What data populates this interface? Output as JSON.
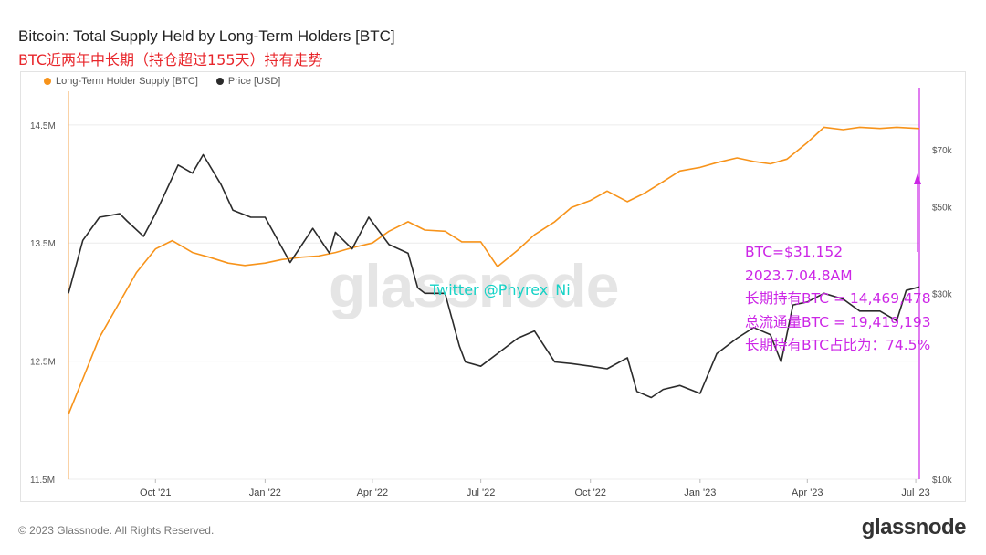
{
  "title": "Bitcoin: Total Supply Held by Long-Term Holders [BTC]",
  "subtitle": "BTC近两年中长期（持仓超过155天）持有走势",
  "footer": "© 2023 Glassnode. All Rights Reserved.",
  "brand": "glassnode",
  "watermark": "glassnode",
  "twitter_handle": "Twitter @Phyrex_Ni",
  "annotations": [
    "BTC=$31,152",
    "2023.7.04.8AM",
    "长期持有BTC = 14,469,478",
    "总流通量BTC = 19,419,193",
    "长期持有BTC占比为：74.5%"
  ],
  "colors": {
    "lth": "#f7931a",
    "price": "#2b2b2b",
    "annotation": "#cc26e6",
    "title_cn": "#e8262b",
    "twitter": "#15d2c6"
  },
  "chart_data": {
    "type": "line",
    "title": "Bitcoin: Total Supply Held by Long-Term Holders [BTC]",
    "legend_position": "top-left",
    "grid": true,
    "x_ticks": [
      "Oct '21",
      "Jan '22",
      "Apr '22",
      "Jul '22",
      "Oct '22",
      "Jan '23",
      "Apr '23",
      "Jul '23"
    ],
    "y_left": {
      "label": "Long-Term Holder Supply [BTC]",
      "ticks": [
        "11.5M",
        "12.5M",
        "13.5M",
        "14.5M"
      ],
      "range": [
        11500000,
        14800000
      ]
    },
    "y_right": {
      "label": "Price [USD]",
      "scale": "log",
      "ticks": [
        "$10k",
        "$30k",
        "$50k",
        "$70k"
      ],
      "range": [
        10000,
        100000
      ]
    },
    "x_range": [
      "2021-07-20",
      "2023-07-04"
    ],
    "series": [
      {
        "name": "Long-Term Holder Supply [BTC]",
        "axis": "left",
        "x": [
          "2021-07-20",
          "2021-08-01",
          "2021-08-15",
          "2021-09-01",
          "2021-09-15",
          "2021-10-01",
          "2021-10-15",
          "2021-11-01",
          "2021-11-15",
          "2021-12-01",
          "2021-12-15",
          "2022-01-01",
          "2022-01-15",
          "2022-02-01",
          "2022-02-15",
          "2022-03-01",
          "2022-03-15",
          "2022-04-01",
          "2022-04-15",
          "2022-05-01",
          "2022-05-15",
          "2022-06-01",
          "2022-06-15",
          "2022-07-01",
          "2022-07-15",
          "2022-08-01",
          "2022-08-15",
          "2022-09-01",
          "2022-09-15",
          "2022-10-01",
          "2022-10-15",
          "2022-11-01",
          "2022-11-15",
          "2022-12-01",
          "2022-12-15",
          "2023-01-01",
          "2023-01-15",
          "2023-02-01",
          "2023-02-15",
          "2023-03-01",
          "2023-03-15",
          "2023-04-01",
          "2023-04-15",
          "2023-05-01",
          "2023-05-15",
          "2023-06-01",
          "2023-06-15",
          "2023-07-04"
        ],
        "values": [
          12050000,
          12350000,
          12700000,
          13000000,
          13250000,
          13450000,
          13520000,
          13420000,
          13380000,
          13330000,
          13310000,
          13330000,
          13360000,
          13380000,
          13390000,
          13420000,
          13460000,
          13500000,
          13600000,
          13680000,
          13610000,
          13600000,
          13510000,
          13510000,
          13300000,
          13440000,
          13570000,
          13680000,
          13800000,
          13860000,
          13940000,
          13850000,
          13920000,
          14020000,
          14110000,
          14140000,
          14180000,
          14220000,
          14190000,
          14170000,
          14210000,
          14350000,
          14480000,
          14460000,
          14480000,
          14470000,
          14480000,
          14469478
        ]
      },
      {
        "name": "Price [USD]",
        "axis": "right",
        "x": [
          "2021-07-20",
          "2021-08-01",
          "2021-08-15",
          "2021-09-01",
          "2021-09-07",
          "2021-09-21",
          "2021-10-01",
          "2021-10-20",
          "2021-11-01",
          "2021-11-10",
          "2021-11-25",
          "2021-12-05",
          "2021-12-20",
          "2022-01-01",
          "2022-01-22",
          "2022-02-10",
          "2022-02-24",
          "2022-03-01",
          "2022-03-15",
          "2022-03-29",
          "2022-04-15",
          "2022-05-01",
          "2022-05-09",
          "2022-05-15",
          "2022-06-01",
          "2022-06-13",
          "2022-06-18",
          "2022-07-01",
          "2022-07-15",
          "2022-08-01",
          "2022-08-15",
          "2022-09-01",
          "2022-09-15",
          "2022-10-01",
          "2022-10-15",
          "2022-11-01",
          "2022-11-09",
          "2022-11-21",
          "2022-12-01",
          "2022-12-15",
          "2023-01-01",
          "2023-01-15",
          "2023-02-01",
          "2023-02-15",
          "2023-03-01",
          "2023-03-10",
          "2023-03-20",
          "2023-04-01",
          "2023-04-15",
          "2023-05-01",
          "2023-05-15",
          "2023-06-01",
          "2023-06-15",
          "2023-06-23",
          "2023-07-04"
        ],
        "values": [
          30000,
          41000,
          47000,
          48000,
          46000,
          42000,
          48000,
          64000,
          61000,
          68000,
          57000,
          49000,
          47000,
          47000,
          36000,
          44000,
          38000,
          43000,
          39000,
          47000,
          40000,
          38000,
          31000,
          30000,
          30000,
          22000,
          20000,
          19500,
          21000,
          23000,
          24000,
          20000,
          19800,
          19500,
          19200,
          20500,
          16800,
          16200,
          17000,
          17400,
          16600,
          21000,
          23000,
          24500,
          23500,
          20000,
          28000,
          28500,
          30000,
          29000,
          27000,
          27000,
          25500,
          30500,
          31152
        ]
      }
    ]
  }
}
